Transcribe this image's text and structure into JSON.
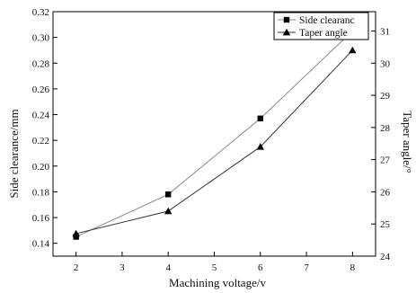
{
  "chart_data": {
    "type": "line",
    "x": [
      2,
      4,
      6,
      8
    ],
    "xlabel": "Machining voltage/v",
    "ylabel_left": "Side clearance/mm",
    "ylabel_right": "Taper angle/°",
    "xlim": [
      1.5,
      8.5
    ],
    "ylim_left": [
      0.13,
      0.32
    ],
    "ylim_right": [
      24,
      31.6
    ],
    "xticks": [
      "2",
      "3",
      "4",
      "5",
      "6",
      "7",
      "8"
    ],
    "yticks_left": [
      "0.14",
      "0.16",
      "0.18",
      "0.20",
      "0.22",
      "0.24",
      "0.26",
      "0.28",
      "0.30",
      "0.32"
    ],
    "yticks_right": [
      "24",
      "25",
      "26",
      "27",
      "28",
      "29",
      "30",
      "31"
    ],
    "grid": false,
    "legend_position": "top-right",
    "series": [
      {
        "name": "Side clearanc",
        "axis": "left",
        "marker": "square",
        "color": "#8a8a8a",
        "values": [
          0.145,
          0.178,
          0.237,
          0.305
        ]
      },
      {
        "name": "Taper angle",
        "axis": "right",
        "marker": "triangle",
        "color": "#333333",
        "values": [
          24.7,
          25.4,
          27.4,
          30.4
        ]
      }
    ]
  }
}
